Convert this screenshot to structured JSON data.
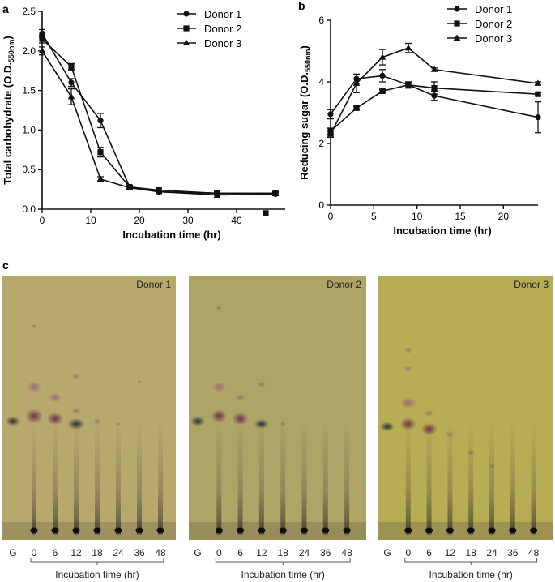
{
  "panels": {
    "a": "a",
    "b": "b",
    "c": "c"
  },
  "chart_data": [
    {
      "id": "a",
      "type": "line",
      "xlabel": "Incubation time  (hr)",
      "ylabel": "Total carbohydrate (O.D.550nm)",
      "ylabel_main": "Total carbohydrate (O.D.",
      "ylabel_sub": "550nm",
      "ylabel_end": ")",
      "xlim": [
        0,
        50
      ],
      "ylim": [
        0,
        2.5
      ],
      "xticks": [
        0,
        10,
        20,
        30,
        40
      ],
      "yticks": [
        0.0,
        0.5,
        1.0,
        1.5,
        2.0,
        2.5
      ],
      "ytick_labels": [
        "0.0",
        "0.5",
        "1.0",
        "1.5",
        "2.0",
        "2.5"
      ],
      "legend_position": "top-right",
      "series": [
        {
          "name": "Donor 1",
          "marker": "circle",
          "x": [
            0,
            6,
            12,
            18,
            24,
            36,
            48
          ],
          "y": [
            2.22,
            1.6,
            1.12,
            0.28,
            0.22,
            0.18,
            0.19
          ],
          "err": [
            0.05,
            0.05,
            0.09,
            0.02,
            0.02,
            0.03,
            0.02
          ]
        },
        {
          "name": "Donor 2",
          "marker": "square",
          "x": [
            0,
            6,
            12,
            18,
            24,
            36,
            48
          ],
          "y": [
            2.15,
            1.8,
            0.72,
            0.28,
            0.24,
            0.2,
            0.2
          ],
          "err": [
            0.05,
            0.04,
            0.06,
            0.02,
            0.02,
            0.02,
            0.02
          ]
        },
        {
          "name": "Donor 3",
          "marker": "triangle",
          "x": [
            0,
            6,
            12,
            18,
            24,
            36,
            48
          ],
          "y": [
            2.0,
            1.42,
            0.38,
            0.27,
            0.22,
            0.2,
            0.2
          ],
          "err": [
            0.05,
            0.1,
            0.03,
            0.02,
            0.02,
            0.02,
            0.02
          ]
        }
      ],
      "extra_points": [
        {
          "x": 46,
          "y": -0.05,
          "marker": "square"
        }
      ]
    },
    {
      "id": "b",
      "type": "line",
      "xlabel": "Incubation time  (hr)",
      "ylabel": "Reducing sugar (O.D.550nm)",
      "ylabel_main": "Reducing sugar (O.D.",
      "ylabel_sub": "550nm",
      "ylabel_end": ")",
      "xlim": [
        0,
        24
      ],
      "ylim": [
        0,
        6
      ],
      "xticks": [
        0,
        5,
        10,
        15,
        20
      ],
      "yticks": [
        0,
        2,
        4,
        6
      ],
      "ytick_labels": [
        "0",
        "2",
        "4",
        "6"
      ],
      "legend_position": "top-right",
      "series": [
        {
          "name": "Donor 1",
          "marker": "circle",
          "x": [
            0,
            3,
            6,
            9,
            12,
            24
          ],
          "y": [
            2.95,
            4.1,
            4.2,
            3.9,
            3.55,
            2.85
          ],
          "err": [
            0.15,
            0.15,
            0.2,
            0.1,
            0.15,
            0.5
          ]
        },
        {
          "name": "Donor 2",
          "marker": "square",
          "x": [
            0,
            3,
            6,
            9,
            12,
            24
          ],
          "y": [
            2.4,
            3.15,
            3.7,
            3.9,
            3.8,
            3.6
          ],
          "err": [
            0.1,
            0.05,
            0.05,
            0.1,
            0.2,
            0.05
          ]
        },
        {
          "name": "Donor 3",
          "marker": "triangle",
          "x": [
            0,
            3,
            6,
            9,
            12,
            24
          ],
          "y": [
            2.3,
            3.95,
            4.8,
            5.1,
            4.4,
            3.95
          ],
          "err": [
            0.1,
            0.3,
            0.25,
            0.15,
            0.05,
            0.05
          ]
        }
      ]
    }
  ],
  "tlc": {
    "plates": [
      {
        "title": "Donor 1",
        "bg": "#b7a96c",
        "lanes": [
          "G",
          "0",
          "6",
          "12",
          "18",
          "24",
          "36",
          "48"
        ],
        "xlabel": "Incubation time (hr)"
      },
      {
        "title": "Donor 2",
        "bg": "#aea466",
        "lanes": [
          "G",
          "0",
          "6",
          "12",
          "18",
          "24",
          "36",
          "48"
        ],
        "xlabel": "Incubation time (hr)"
      },
      {
        "title": "Donor 3",
        "bg": "#b7ad55",
        "lanes": [
          "G",
          "0",
          "6",
          "12",
          "18",
          "24",
          "36",
          "48"
        ],
        "xlabel": "Incubation time (hr)"
      }
    ]
  }
}
